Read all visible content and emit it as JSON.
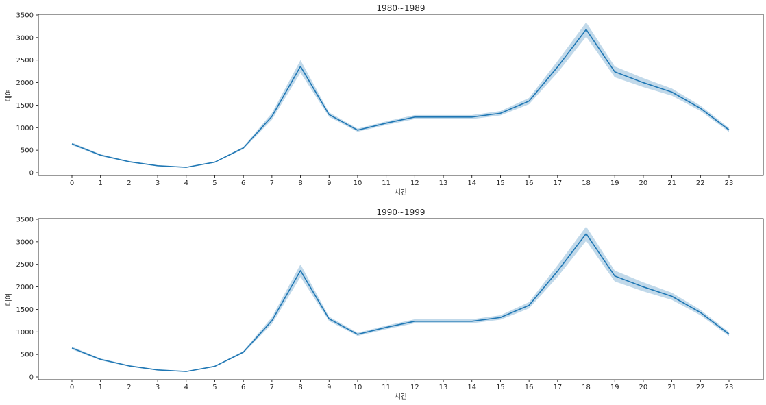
{
  "chart_data": [
    {
      "type": "line",
      "title": "1980~1989",
      "xlabel": "시간",
      "ylabel": "대여",
      "x": [
        0,
        1,
        2,
        3,
        4,
        5,
        6,
        7,
        8,
        9,
        10,
        11,
        12,
        13,
        14,
        15,
        16,
        17,
        18,
        19,
        20,
        21,
        22,
        23
      ],
      "ylim": [
        0,
        3500
      ],
      "yticks": [
        0,
        500,
        1000,
        1500,
        2000,
        2500,
        3000,
        3500
      ],
      "grid": false,
      "color": "#1f77b4",
      "band_color": "#1f77b4",
      "series": [
        {
          "values": [
            640,
            390,
            245,
            155,
            120,
            235,
            550,
            1250,
            2360,
            1290,
            945,
            1100,
            1235,
            1235,
            1235,
            1320,
            1590,
            2350,
            3180,
            2240,
            2000,
            1790,
            1430,
            950
          ],
          "ci_lower": [
            610,
            370,
            230,
            145,
            112,
            222,
            525,
            1175,
            2220,
            1240,
            910,
            1060,
            1190,
            1190,
            1190,
            1270,
            1520,
            2220,
            3020,
            2120,
            1900,
            1710,
            1370,
            905
          ],
          "ci_upper": [
            670,
            410,
            260,
            165,
            128,
            248,
            575,
            1325,
            2500,
            1340,
            980,
            1140,
            1280,
            1280,
            1280,
            1370,
            1660,
            2480,
            3340,
            2360,
            2100,
            1870,
            1490,
            995
          ]
        }
      ]
    },
    {
      "type": "line",
      "title": "1990~1999",
      "xlabel": "시간",
      "ylabel": "대여",
      "x": [
        0,
        1,
        2,
        3,
        4,
        5,
        6,
        7,
        8,
        9,
        10,
        11,
        12,
        13,
        14,
        15,
        16,
        17,
        18,
        19,
        20,
        21,
        22,
        23
      ],
      "ylim": [
        0,
        3500
      ],
      "yticks": [
        0,
        500,
        1000,
        1500,
        2000,
        2500,
        3000,
        3500
      ],
      "grid": false,
      "color": "#1f77b4",
      "band_color": "#1f77b4",
      "series": [
        {
          "values": [
            640,
            390,
            245,
            155,
            120,
            235,
            550,
            1250,
            2360,
            1290,
            945,
            1100,
            1235,
            1235,
            1235,
            1320,
            1590,
            2350,
            3180,
            2240,
            2000,
            1790,
            1430,
            950
          ],
          "ci_lower": [
            610,
            370,
            230,
            145,
            112,
            222,
            525,
            1175,
            2220,
            1240,
            910,
            1060,
            1190,
            1190,
            1190,
            1270,
            1520,
            2220,
            3020,
            2120,
            1900,
            1710,
            1370,
            905
          ],
          "ci_upper": [
            670,
            410,
            260,
            165,
            128,
            248,
            575,
            1325,
            2500,
            1340,
            980,
            1140,
            1280,
            1280,
            1280,
            1370,
            1660,
            2480,
            3340,
            2360,
            2100,
            1870,
            1490,
            995
          ]
        }
      ]
    }
  ]
}
